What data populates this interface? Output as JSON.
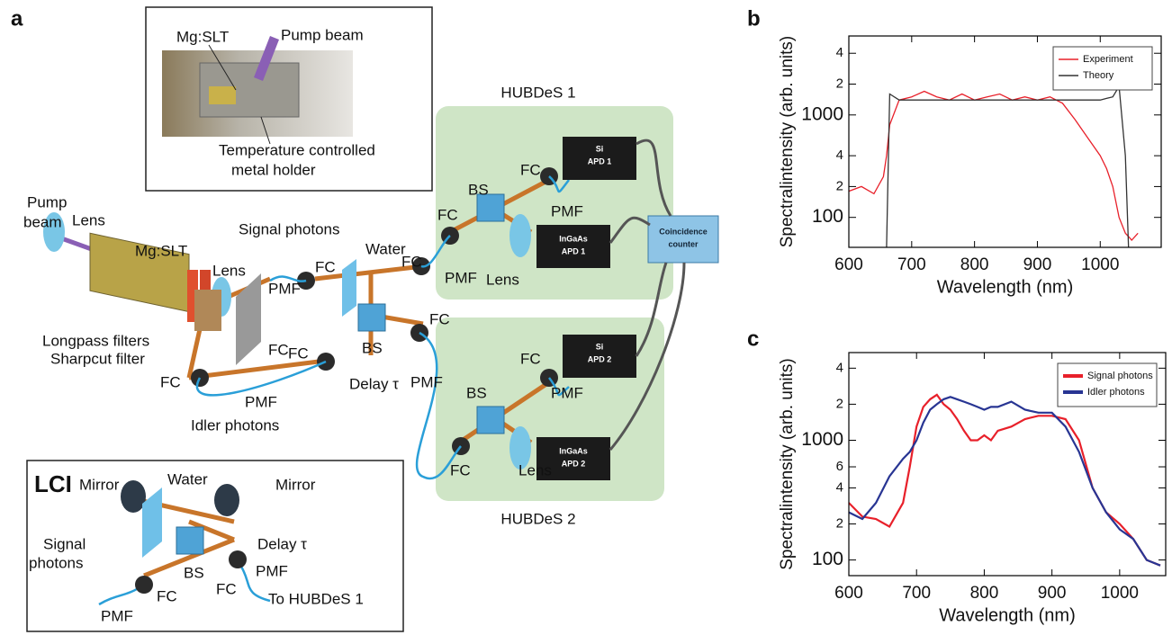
{
  "diagram": {
    "panel_labels": [
      "a",
      "b",
      "c"
    ],
    "inset": {
      "labels": [
        "Mg:SLT",
        "Pump beam",
        "Temperature controlled",
        "metal holder"
      ]
    },
    "setup": {
      "labels": [
        "HUBDeS 1",
        "HUBDeS 2",
        "Pump",
        "beam",
        "Lens",
        "Mg:SLT",
        "Signal photons",
        "Lens",
        "Longpass filters",
        "Sharpcut filter",
        "Idler photons",
        "PMF",
        "FC",
        "Water",
        "FC",
        "FC",
        "FC",
        "FC",
        "BS",
        "FC",
        "PMF",
        "Delay τ",
        "PMF",
        "BS",
        "FC",
        "PMF",
        "FC",
        "PMF",
        "Lens",
        "FC",
        "BS",
        "PMF",
        "FC",
        "Lens"
      ]
    },
    "devices": [
      "Si",
      "APD 1",
      "InGaAs",
      "APD 1",
      "Coincidence",
      "counter",
      "Si",
      "APD 2",
      "InGaAs",
      "APD 2"
    ],
    "lci": {
      "labels": [
        "LCI",
        "Mirror",
        "Water",
        "Mirror",
        "Delay τ",
        "Signal",
        "photons",
        "BS",
        "PMF",
        "FC",
        "FC",
        "PMF",
        "To HUBDeS 1"
      ]
    }
  },
  "chart_data": [
    {
      "type": "line",
      "log_y": true,
      "xlabel": "Wavelength (nm)",
      "ylabel": "Spectralintensity (arb. units)",
      "x": [
        600,
        620,
        640,
        655,
        660,
        665,
        680,
        700,
        720,
        740,
        760,
        780,
        800,
        820,
        840,
        860,
        880,
        900,
        920,
        940,
        960,
        980,
        1000,
        1010,
        1020,
        1030,
        1040,
        1045,
        1050,
        1060,
        1070
      ],
      "series": [
        {
          "name": "Experiment",
          "color": "#e8202a",
          "values": [
            180,
            200,
            170,
            250,
            400,
            800,
            1400,
            1500,
            1700,
            1500,
            1400,
            1600,
            1400,
            1500,
            1600,
            1400,
            1500,
            1400,
            1500,
            1300,
            900,
            600,
            400,
            300,
            200,
            100,
            70,
            65,
            60,
            70,
            null
          ]
        },
        {
          "name": "Theory",
          "color": "#333333",
          "values": [
            null,
            null,
            null,
            null,
            51,
            1600,
            1400,
            1400,
            1400,
            1400,
            1400,
            1400,
            1400,
            1400,
            1400,
            1400,
            1400,
            1400,
            1400,
            1400,
            1400,
            1400,
            1400,
            1450,
            1500,
            1900,
            400,
            51,
            null,
            null,
            null
          ]
        }
      ],
      "xlim": [
        600,
        1097
      ],
      "xticks": [
        600,
        700,
        800,
        900,
        1000
      ],
      "ylim": [
        51,
        5900
      ],
      "yticks": [
        100,
        {
          "value": 200,
          "label": "2"
        },
        {
          "value": 400,
          "label": "4"
        },
        1000,
        {
          "value": 2000,
          "label": "2"
        },
        {
          "value": 4000,
          "label": "4"
        }
      ],
      "legend": "upper right"
    },
    {
      "type": "line",
      "log_y": true,
      "xlabel": "Wavelength (nm)",
      "ylabel": "Spectralintensity (arb. units)",
      "x": [
        600,
        620,
        640,
        660,
        680,
        690,
        700,
        710,
        720,
        730,
        740,
        750,
        760,
        770,
        780,
        790,
        800,
        810,
        820,
        840,
        860,
        880,
        900,
        920,
        940,
        960,
        980,
        1000,
        1020,
        1040,
        1060
      ],
      "series": [
        {
          "name": "Signal photons",
          "color": "#e8202a",
          "values": [
            300,
            230,
            220,
            190,
            300,
            600,
            1300,
            1900,
            2200,
            2400,
            2000,
            1800,
            1500,
            1200,
            1000,
            1000,
            1100,
            1000,
            1200,
            1300,
            1500,
            1600,
            1600,
            1500,
            1000,
            400,
            250,
            200,
            150,
            100,
            90
          ]
        },
        {
          "name": "Idler photons",
          "color": "#283593",
          "values": [
            250,
            220,
            300,
            500,
            700,
            800,
            1000,
            1400,
            1800,
            2000,
            2200,
            2300,
            2200,
            2100,
            2000,
            1900,
            1800,
            1900,
            1900,
            2100,
            1800,
            1700,
            1700,
            1300,
            800,
            400,
            250,
            180,
            150,
            100,
            90
          ]
        }
      ],
      "xlim": [
        600,
        1068
      ],
      "xticks": [
        600,
        700,
        800,
        900,
        1000
      ],
      "ylim": [
        74,
        5400
      ],
      "yticks": [
        100,
        {
          "value": 200,
          "label": "2"
        },
        {
          "value": 400,
          "label": "4"
        },
        {
          "value": 600,
          "label": "6"
        },
        1000,
        {
          "value": 2000,
          "label": "2"
        },
        {
          "value": 4000,
          "label": "4"
        }
      ],
      "legend": "upper right"
    }
  ]
}
